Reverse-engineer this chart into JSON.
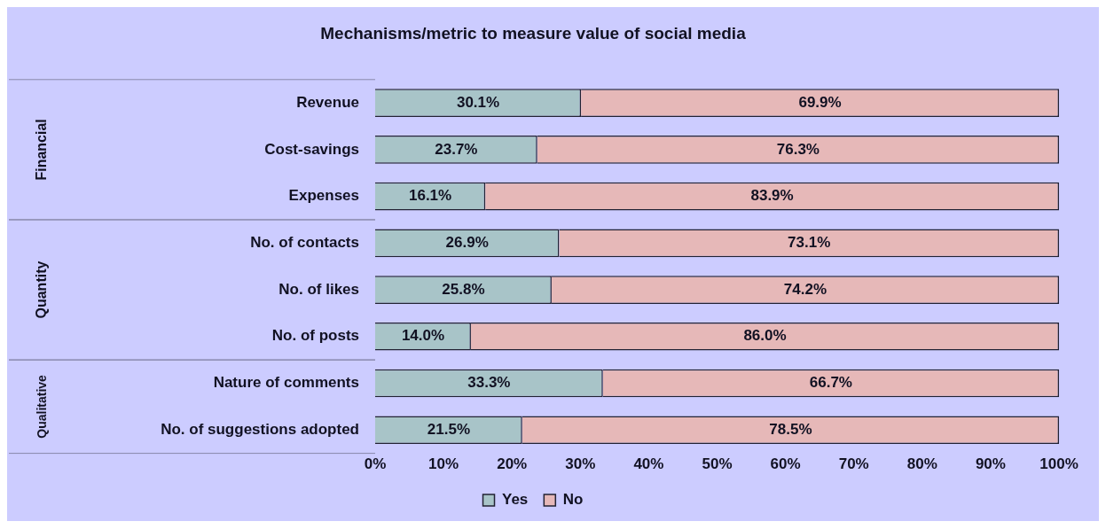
{
  "chart_data": {
    "type": "bar",
    "orientation": "horizontal",
    "stacked": true,
    "title": "Mechanisms/metric to measure value of social media",
    "categories": [
      "Revenue",
      "Cost-savings",
      "Expenses",
      "No. of contacts",
      "No. of likes",
      "No. of posts",
      "Nature of comments",
      "No. of suggestions adopted"
    ],
    "series": [
      {
        "name": "Yes",
        "color": "#a8c4c8",
        "values": [
          30.1,
          23.7,
          16.1,
          26.9,
          25.8,
          14.0,
          33.3,
          21.5
        ],
        "value_labels": [
          "30.1%",
          "23.7%",
          "16.1%",
          "26.9%",
          "25.8%",
          "14.0%",
          "33.3%",
          "21.5%"
        ]
      },
      {
        "name": "No",
        "color": "#e6b8b8",
        "values": [
          69.9,
          76.3,
          83.9,
          73.1,
          74.2,
          86.0,
          66.7,
          78.5
        ],
        "value_labels": [
          "69.9%",
          "76.3%",
          "83.9%",
          "73.1%",
          "74.2%",
          "86.0%",
          "66.7%",
          "78.5%"
        ]
      }
    ],
    "xlim": [
      0,
      100
    ],
    "xticks": [
      {
        "value": 0,
        "label": "0%"
      },
      {
        "value": 10,
        "label": "10%"
      },
      {
        "value": 20,
        "label": "20%"
      },
      {
        "value": 30,
        "label": "30%"
      },
      {
        "value": 40,
        "label": "40%"
      },
      {
        "value": 50,
        "label": "50%"
      },
      {
        "value": 60,
        "label": "60%"
      },
      {
        "value": 70,
        "label": "70%"
      },
      {
        "value": 80,
        "label": "80%"
      },
      {
        "value": 90,
        "label": "90%"
      },
      {
        "value": 100,
        "label": "100%"
      }
    ],
    "annotations": [
      "Financial",
      "Quantity",
      "Qualitative"
    ],
    "grid": false,
    "legend": "bottom"
  }
}
